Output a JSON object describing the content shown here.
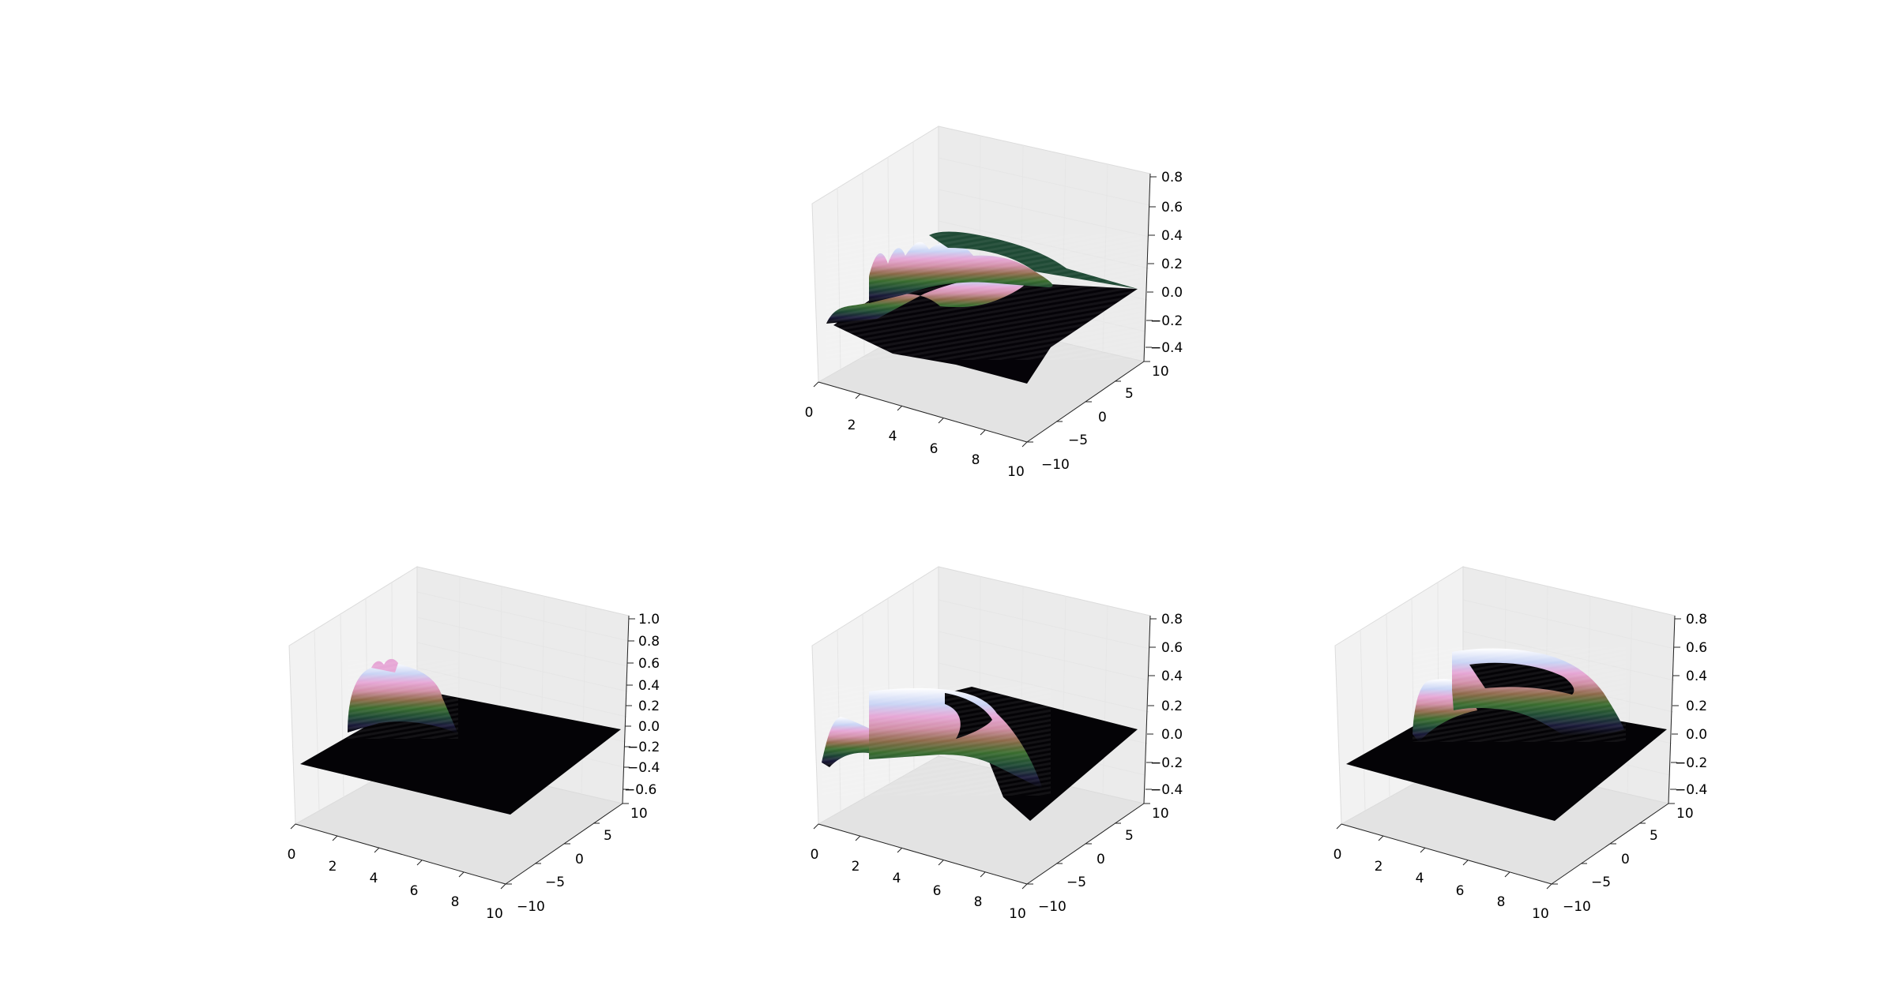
{
  "colormap": "cubehelix",
  "chart_data": [
    {
      "type": "surface3d",
      "position": "top-center",
      "x_ticks": [
        "0",
        "2",
        "4",
        "6",
        "8",
        "10"
      ],
      "y_ticks": [
        "−10",
        "−5",
        "0",
        "5",
        "10"
      ],
      "z_ticks": [
        "−0.4",
        "−0.2",
        "0.0",
        "0.2",
        "0.4",
        "0.6",
        "0.8"
      ],
      "xlim": [
        0,
        10
      ],
      "ylim": [
        -10,
        10
      ],
      "zlim": [
        -0.4,
        0.8
      ],
      "surface": "two interleaved ridges with four peaks rising toward the back; flat floor at z=0 toward x=10"
    },
    {
      "type": "surface3d",
      "position": "bottom-left",
      "x_ticks": [
        "0",
        "2",
        "4",
        "6",
        "8",
        "10"
      ],
      "y_ticks": [
        "−10",
        "−5",
        "0",
        "5",
        "10"
      ],
      "z_ticks": [
        "−0.6",
        "−0.4",
        "−0.2",
        "0.0",
        "0.2",
        "0.4",
        "0.6",
        "0.8",
        "1.0"
      ],
      "xlim": [
        0,
        10
      ],
      "ylim": [
        -10,
        10
      ],
      "zlim": [
        -0.6,
        1.0
      ],
      "surface": "small tall arch near the back-left corner; flat floor elsewhere"
    },
    {
      "type": "surface3d",
      "position": "bottom-center",
      "x_ticks": [
        "0",
        "2",
        "4",
        "6",
        "8",
        "10"
      ],
      "y_ticks": [
        "−10",
        "−5",
        "0",
        "5",
        "10"
      ],
      "z_ticks": [
        "−0.4",
        "−0.2",
        "0.0",
        "0.2",
        "0.4",
        "0.6",
        "0.8"
      ],
      "xlim": [
        0,
        10
      ],
      "ylim": [
        -10,
        10
      ],
      "zlim": [
        -0.4,
        0.8
      ],
      "surface": "wide horseshoe-shaped ridge spanning the left half; flat floor toward x=10"
    },
    {
      "type": "surface3d",
      "position": "bottom-right",
      "x_ticks": [
        "0",
        "2",
        "4",
        "6",
        "8",
        "10"
      ],
      "y_ticks": [
        "−10",
        "−5",
        "0",
        "5",
        "10"
      ],
      "z_ticks": [
        "−0.4",
        "−0.2",
        "0.0",
        "0.2",
        "0.4",
        "0.6",
        "0.8"
      ],
      "xlim": [
        0,
        10
      ],
      "ylim": [
        -10,
        10
      ],
      "zlim": [
        -0.4,
        0.8
      ],
      "surface": "rounded half-ring ridge over the center; flat floor toward the edges"
    }
  ]
}
